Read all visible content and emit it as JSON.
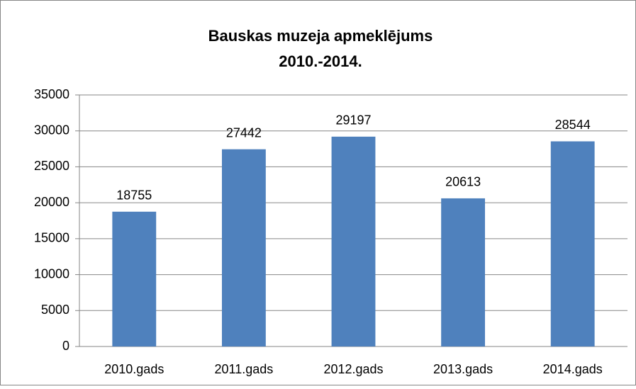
{
  "chart_data": {
    "type": "bar",
    "title": [
      "Bauskas muzeja apmeklējums",
      "2010.-2014."
    ],
    "categories": [
      "2010.gads",
      "2011.gads",
      "2012.gads",
      "2013.gads",
      "2014.gads"
    ],
    "values": [
      18755,
      27442,
      29197,
      20613,
      28544
    ],
    "color": "#4f81bd",
    "ylim": [
      0,
      35000
    ],
    "yticks": [
      0,
      5000,
      10000,
      15000,
      20000,
      25000,
      30000,
      35000
    ],
    "grid": true
  }
}
